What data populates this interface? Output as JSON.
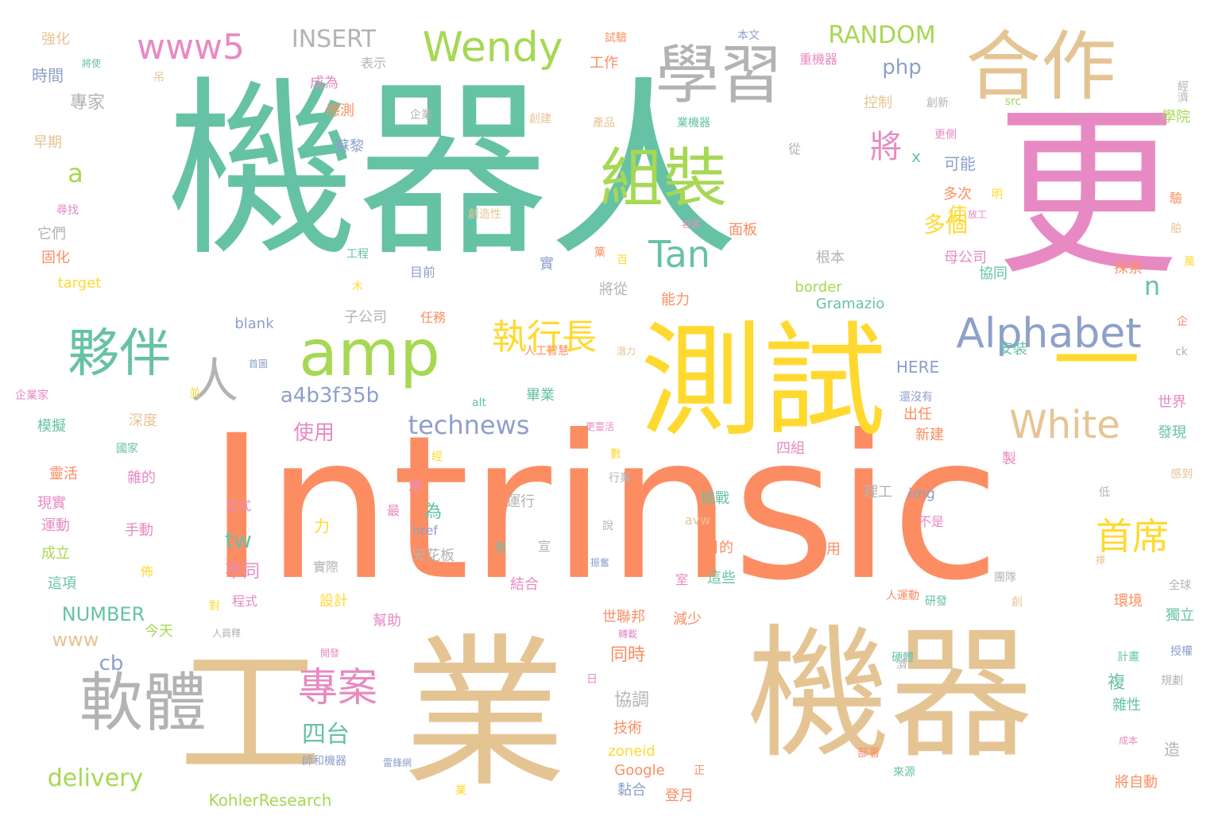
{
  "palette": {
    "orange": "#fc8d62",
    "green": "#66c2a5",
    "tan": "#e5c494",
    "pink": "#e78ac3",
    "yellow": "#ffd92f",
    "lime": "#a6d854",
    "blue": "#8da0cb",
    "gray": "#b3b3b3"
  },
  "words": [
    {
      "text": "Intrinsic",
      "color": "orange"
    },
    {
      "text": "機器人",
      "color": "green"
    },
    {
      "text": "業",
      "color": "tan"
    },
    {
      "text": "機器",
      "color": "tan"
    },
    {
      "text": "工",
      "color": "tan"
    },
    {
      "text": "更",
      "color": "pink"
    },
    {
      "text": "一",
      "color": "yellow"
    },
    {
      "text": "測試",
      "color": "yellow"
    },
    {
      "text": "合作",
      "color": "tan"
    },
    {
      "text": "學習",
      "color": "gray"
    },
    {
      "text": "組裝",
      "color": "lime"
    },
    {
      "text": "軟體",
      "color": "gray"
    },
    {
      "text": "amp",
      "color": "lime"
    },
    {
      "text": "夥伴",
      "color": "green"
    },
    {
      "text": "人",
      "color": "gray"
    },
    {
      "text": "Alphabet",
      "color": "blue"
    },
    {
      "text": "White",
      "color": "tan"
    },
    {
      "text": "專案",
      "color": "pink"
    },
    {
      "text": "Wendy",
      "color": "lime"
    },
    {
      "text": "執行長",
      "color": "yellow"
    },
    {
      "text": "Tan",
      "color": "green"
    },
    {
      "text": "首席",
      "color": "yellow"
    },
    {
      "text": "www5",
      "color": "pink"
    },
    {
      "text": "將",
      "color": "pink"
    },
    {
      "text": "technews",
      "color": "blue"
    },
    {
      "text": "a4b3f35b",
      "color": "blue"
    },
    {
      "text": "delivery",
      "color": "lime"
    },
    {
      "text": "INSERT",
      "color": "gray"
    },
    {
      "text": "RANDOM",
      "color": "lime"
    },
    {
      "text": "php",
      "color": "blue"
    },
    {
      "text": "NUMBER",
      "color": "green"
    },
    {
      "text": "www",
      "color": "tan"
    },
    {
      "text": "tw",
      "color": "green"
    },
    {
      "text": "四台",
      "color": "green"
    },
    {
      "text": "cb",
      "color": "blue"
    },
    {
      "text": "a",
      "color": "lime"
    },
    {
      "text": "n",
      "color": "green"
    },
    {
      "text": "多個",
      "color": "yellow"
    },
    {
      "text": "使用",
      "color": "pink"
    },
    {
      "text": "專家",
      "color": "gray"
    },
    {
      "text": "不同",
      "color": "pink"
    },
    {
      "text": "同時",
      "color": "orange"
    },
    {
      "text": "協調",
      "color": "gray"
    },
    {
      "text": "HERE",
      "color": "blue"
    },
    {
      "text": "強化",
      "color": "tan"
    },
    {
      "text": "時間",
      "color": "blue"
    },
    {
      "text": "表示",
      "color": "gray"
    },
    {
      "text": "試驗",
      "color": "orange"
    },
    {
      "text": "工作",
      "color": "orange"
    },
    {
      "text": "本文",
      "color": "blue"
    },
    {
      "text": "重機器",
      "color": "pink"
    },
    {
      "text": "經濟",
      "color": "gray"
    },
    {
      "text": "成為",
      "color": "pink"
    },
    {
      "text": "感測",
      "color": "orange"
    },
    {
      "text": "企業",
      "color": "gray"
    },
    {
      "text": "創建",
      "color": "tan"
    },
    {
      "text": "產品",
      "color": "tan"
    },
    {
      "text": "業機器",
      "color": "green"
    },
    {
      "text": "src",
      "color": "lime"
    },
    {
      "text": "創新",
      "color": "gray"
    },
    {
      "text": "控制",
      "color": "tan"
    },
    {
      "text": "學院",
      "color": "lime"
    },
    {
      "text": "早期",
      "color": "tan"
    },
    {
      "text": "蘇黎",
      "color": "blue"
    },
    {
      "text": "從",
      "color": "gray"
    },
    {
      "text": "更側",
      "color": "pink"
    },
    {
      "text": "可能",
      "color": "blue"
    },
    {
      "text": "多次",
      "color": "orange"
    },
    {
      "text": "使",
      "color": "yellow"
    },
    {
      "text": "尋找",
      "color": "pink"
    },
    {
      "text": "它們",
      "color": "gray"
    },
    {
      "text": "創造性",
      "color": "tan"
    },
    {
      "text": "容易",
      "color": "pink"
    },
    {
      "text": "面板",
      "color": "orange"
    },
    {
      "text": "母公司",
      "color": "pink"
    },
    {
      "text": "固化",
      "color": "orange"
    },
    {
      "text": "工程",
      "color": "green"
    },
    {
      "text": "目前",
      "color": "blue"
    },
    {
      "text": "實",
      "color": "blue"
    },
    {
      "text": "根本",
      "color": "gray"
    },
    {
      "text": "協同",
      "color": "green"
    },
    {
      "text": "探索",
      "color": "orange"
    },
    {
      "text": "target",
      "color": "yellow"
    },
    {
      "text": "將從",
      "color": "gray"
    },
    {
      "text": "border",
      "color": "lime"
    },
    {
      "text": "Gramazio",
      "color": "green"
    },
    {
      "text": "能力",
      "color": "orange"
    },
    {
      "text": "子公司",
      "color": "gray"
    },
    {
      "text": "任務",
      "color": "orange"
    },
    {
      "text": "blank",
      "color": "blue"
    },
    {
      "text": "人工智慧",
      "color": "orange"
    },
    {
      "text": "潛力",
      "color": "tan"
    },
    {
      "text": "安裝",
      "color": "green"
    },
    {
      "text": "企業家",
      "color": "pink"
    },
    {
      "text": "模擬",
      "color": "green"
    },
    {
      "text": "深度",
      "color": "tan"
    },
    {
      "text": "畢業",
      "color": "green"
    },
    {
      "text": "alt",
      "color": "green"
    },
    {
      "text": "出任",
      "color": "orange"
    },
    {
      "text": "世界",
      "color": "pink"
    },
    {
      "text": "新建",
      "color": "orange"
    },
    {
      "text": "發現",
      "color": "green"
    },
    {
      "text": "國家",
      "color": "green"
    },
    {
      "text": "靈活",
      "color": "orange"
    },
    {
      "text": "雜的",
      "color": "pink"
    },
    {
      "text": "現實",
      "color": "pink"
    },
    {
      "text": "運動",
      "color": "pink"
    },
    {
      "text": "成立",
      "color": "lime"
    },
    {
      "text": "這項",
      "color": "green"
    },
    {
      "text": "更靈活",
      "color": "pink"
    },
    {
      "text": "行業",
      "color": "gray"
    },
    {
      "text": "四組",
      "color": "pink"
    },
    {
      "text": "製",
      "color": "pink"
    },
    {
      "text": "正式",
      "color": "pink"
    },
    {
      "text": "挑戰",
      "color": "green"
    },
    {
      "text": "理工",
      "color": "gray"
    },
    {
      "text": "img",
      "color": "blue"
    },
    {
      "text": "感到",
      "color": "tan"
    },
    {
      "text": "運行",
      "color": "gray"
    },
    {
      "text": "最",
      "color": "pink"
    },
    {
      "text": "為",
      "color": "green"
    },
    {
      "text": "力",
      "color": "yellow"
    },
    {
      "text": "href",
      "color": "blue"
    },
    {
      "text": "avw",
      "color": "tan"
    },
    {
      "text": "不是",
      "color": "pink"
    },
    {
      "text": "手動",
      "color": "pink"
    },
    {
      "text": "說",
      "color": "gray"
    },
    {
      "text": "目的",
      "color": "orange"
    },
    {
      "text": "有用",
      "color": "orange"
    },
    {
      "text": "天花板",
      "color": "gray"
    },
    {
      "text": "宣",
      "color": "gray"
    },
    {
      "text": "實際",
      "color": "gray"
    },
    {
      "text": "振奮",
      "color": "blue"
    },
    {
      "text": "結合",
      "color": "pink"
    },
    {
      "text": "室",
      "color": "pink"
    },
    {
      "text": "這些",
      "color": "green"
    },
    {
      "text": "團隊",
      "color": "gray"
    },
    {
      "text": "全球",
      "color": "gray"
    },
    {
      "text": "程式",
      "color": "pink"
    },
    {
      "text": "設計",
      "color": "yellow"
    },
    {
      "text": "幫助",
      "color": "pink"
    },
    {
      "text": "世聯邦",
      "color": "orange"
    },
    {
      "text": "減少",
      "color": "orange"
    },
    {
      "text": "人運動",
      "color": "orange"
    },
    {
      "text": "研發",
      "color": "green"
    },
    {
      "text": "環境",
      "color": "orange"
    },
    {
      "text": "獨立",
      "color": "green"
    },
    {
      "text": "轉載",
      "color": "pink"
    },
    {
      "text": "今天",
      "color": "lime"
    },
    {
      "text": "人員釋",
      "color": "gray"
    },
    {
      "text": "開發",
      "color": "pink"
    },
    {
      "text": "硬體",
      "color": "green"
    },
    {
      "text": "計畫",
      "color": "green"
    },
    {
      "text": "授權",
      "color": "blue"
    },
    {
      "text": "規劃",
      "color": "gray"
    },
    {
      "text": "技術",
      "color": "orange"
    },
    {
      "text": "雜性",
      "color": "green"
    },
    {
      "text": "zoneid",
      "color": "yellow"
    },
    {
      "text": "Google",
      "color": "orange"
    },
    {
      "text": "黏合",
      "color": "blue"
    },
    {
      "text": "登月",
      "color": "orange"
    },
    {
      "text": "師和機器",
      "color": "blue"
    },
    {
      "text": "雷鋒網",
      "color": "blue"
    },
    {
      "text": "部署",
      "color": "orange"
    },
    {
      "text": "來源",
      "color": "green"
    },
    {
      "text": "成本",
      "color": "pink"
    },
    {
      "text": "造",
      "color": "gray"
    },
    {
      "text": "將自動",
      "color": "orange"
    },
    {
      "text": "KohlerResearch",
      "color": "lime"
    },
    {
      "text": "複",
      "color": "green"
    },
    {
      "text": "ck",
      "color": "gray"
    },
    {
      "text": "吊",
      "color": "tan"
    },
    {
      "text": "將使",
      "color": "green"
    },
    {
      "text": "明",
      "color": "yellow"
    },
    {
      "text": "驗",
      "color": "orange"
    },
    {
      "text": "舶",
      "color": "tan"
    },
    {
      "text": "萬",
      "color": "yellow"
    },
    {
      "text": "企",
      "color": "orange"
    },
    {
      "text": "百",
      "color": "yellow"
    },
    {
      "text": "篥",
      "color": "orange"
    },
    {
      "text": "木",
      "color": "yellow"
    },
    {
      "text": "放工",
      "color": "pink"
    },
    {
      "text": "並",
      "color": "yellow"
    },
    {
      "text": "佈",
      "color": "yellow"
    },
    {
      "text": "對",
      "color": "yellow"
    },
    {
      "text": "日",
      "color": "pink"
    },
    {
      "text": "業",
      "color": "yellow"
    },
    {
      "text": "正",
      "color": "orange"
    },
    {
      "text": "潛",
      "color": "pink"
    },
    {
      "text": "經",
      "color": "yellow"
    },
    {
      "text": "數",
      "color": "yellow"
    },
    {
      "text": "低",
      "color": "gray"
    },
    {
      "text": "發",
      "color": "green"
    },
    {
      "text": "濟",
      "color": "gray"
    },
    {
      "text": "創",
      "color": "tan"
    },
    {
      "text": "擇",
      "color": "tan"
    },
    {
      "text": "x",
      "color": "green"
    },
    {
      "text": "還沒有",
      "color": "blue"
    },
    {
      "text": "首圖",
      "color": "blue"
    }
  ]
}
